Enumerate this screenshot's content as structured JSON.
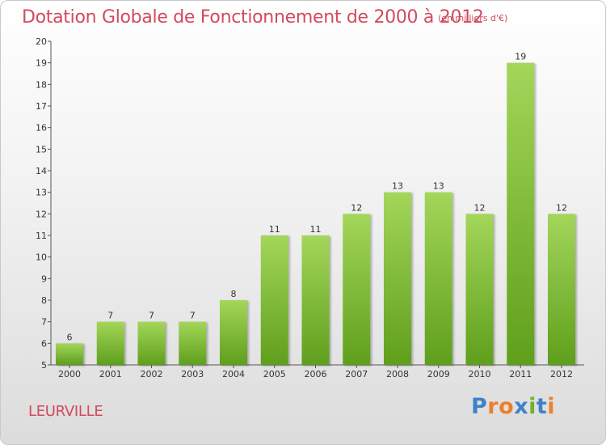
{
  "header": {
    "title": "Dotation Globale de Fonctionnement de 2000 à 2012",
    "subtitle": "(en milliers d'€)"
  },
  "footer": {
    "commune": "LEURVILLE",
    "logo": "Proxiti"
  },
  "colors": {
    "title": "#d24a5e",
    "bar_top": "#a3d65a",
    "bar_bottom": "#5f9f1c",
    "logo_letters": [
      "#3f82c9",
      "#e9812b",
      "#e9812b",
      "#3f82c9",
      "#6cb52b",
      "#3f82c9",
      "#e9812b"
    ]
  },
  "chart_data": {
    "type": "bar",
    "categories": [
      "2000",
      "2001",
      "2002",
      "2003",
      "2004",
      "2005",
      "2006",
      "2007",
      "2008",
      "2009",
      "2010",
      "2011",
      "2012"
    ],
    "values": [
      6,
      7,
      7,
      7,
      8,
      11,
      11,
      12,
      13,
      13,
      12,
      19,
      12
    ],
    "data_labels": [
      "6",
      "7",
      "7",
      "7",
      "8",
      "11",
      "11",
      "12",
      "13",
      "13",
      "12",
      "19",
      "12"
    ],
    "ylim": [
      5,
      20
    ],
    "yticks": [
      "5",
      "6",
      "7",
      "8",
      "9",
      "10",
      "11",
      "12",
      "13",
      "14",
      "15",
      "16",
      "17",
      "18",
      "19",
      "20"
    ],
    "grid": false,
    "legend": "none"
  }
}
